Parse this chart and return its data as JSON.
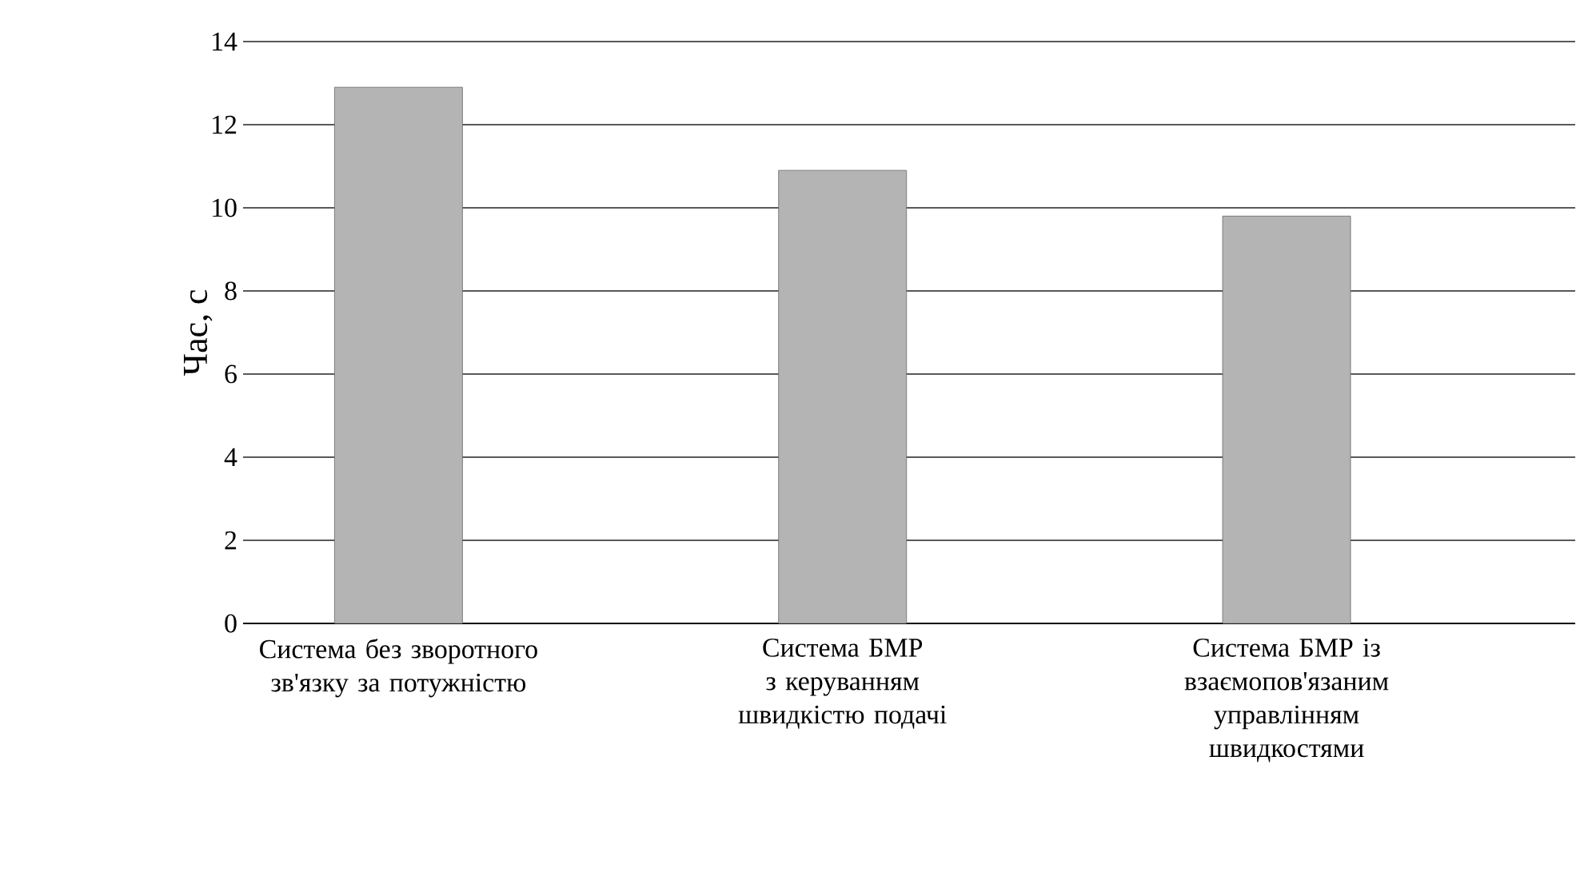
{
  "chart_data": {
    "type": "bar",
    "ylabel": "Час, с",
    "categories": [
      "Система без зворотного зв'язку за потужністю",
      "Система БМР з керуванням швидкістю подачі",
      "Система БМР із взаємопов'язаним управлінням швидкостями"
    ],
    "values": [
      12.9,
      10.9,
      9.8
    ],
    "color": "#b4b4b4",
    "ylim": [
      0,
      14
    ],
    "yticks": [
      0,
      2,
      4,
      6,
      8,
      10,
      12,
      14
    ],
    "grid": "y"
  }
}
